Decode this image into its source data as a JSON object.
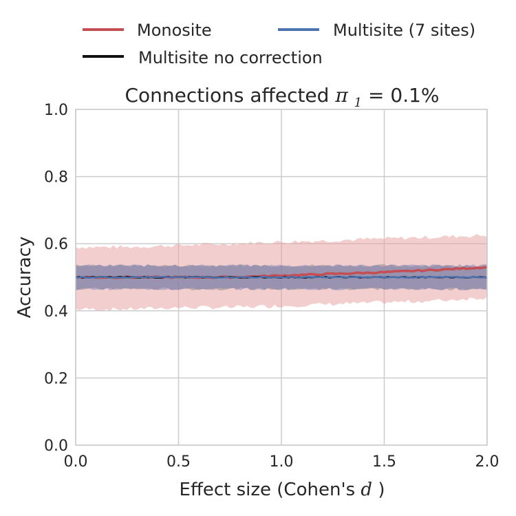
{
  "chart_data": {
    "type": "line",
    "title": {
      "prefix": "Connections affected ",
      "symbol": "π",
      "subscript": "1",
      "equals": " =",
      "value": "0.1%"
    },
    "xlabel": {
      "prefix": "Effect size (Cohen's ",
      "symbol": "d",
      "suffix": ")"
    },
    "ylabel": "Accuracy",
    "xlim": [
      0,
      2
    ],
    "ylim": [
      0,
      1
    ],
    "xticks": [
      0,
      0.5,
      1,
      1.5,
      2
    ],
    "xtick_labels": [
      "0.0",
      "0.5",
      "1.0",
      "1.5",
      "2.0"
    ],
    "yticks": [
      0,
      0.2,
      0.4,
      0.6,
      0.8,
      1.0
    ],
    "ytick_labels": [
      "0.0",
      "0.2",
      "0.4",
      "0.6",
      "0.8",
      "1.0"
    ],
    "grid": true,
    "legend_position": "top, above plot",
    "x": [
      0,
      0.25,
      0.5,
      0.75,
      1.0,
      1.25,
      1.5,
      1.75,
      2.0
    ],
    "series": [
      {
        "name": "Monosite",
        "color": "#c44e52",
        "values": [
          0.5,
          0.5,
          0.5,
          0.5,
          0.505,
          0.51,
          0.515,
          0.522,
          0.53
        ],
        "band_lower": [
          0.405,
          0.405,
          0.41,
          0.41,
          0.415,
          0.42,
          0.425,
          0.43,
          0.44
        ],
        "band_upper": [
          0.59,
          0.59,
          0.595,
          0.6,
          0.605,
          0.61,
          0.615,
          0.62,
          0.625
        ]
      },
      {
        "name": "Multisite (7 sites)",
        "color": "#4c72b0",
        "values": [
          0.5,
          0.5,
          0.5,
          0.5,
          0.5,
          0.5,
          0.5,
          0.5,
          0.5
        ],
        "band_lower": [
          0.465,
          0.465,
          0.465,
          0.465,
          0.465,
          0.465,
          0.465,
          0.465,
          0.465
        ],
        "band_upper": [
          0.535,
          0.535,
          0.535,
          0.535,
          0.535,
          0.535,
          0.535,
          0.535,
          0.535
        ]
      },
      {
        "name": "Multisite no correction",
        "color": "#111111",
        "values": [
          0.5,
          0.5,
          0.5,
          0.5,
          0.5,
          0.5,
          0.5,
          0.5,
          0.5
        ],
        "band_lower": [
          0.465,
          0.465,
          0.465,
          0.465,
          0.465,
          0.465,
          0.465,
          0.465,
          0.465
        ],
        "band_upper": [
          0.535,
          0.535,
          0.535,
          0.535,
          0.535,
          0.535,
          0.535,
          0.535,
          0.535
        ]
      }
    ],
    "colors": {
      "grid": "#cccccc",
      "frame": "#cccccc",
      "monosite_band": "#e8a5a6",
      "multisite_band": "#8e8fb0"
    }
  }
}
